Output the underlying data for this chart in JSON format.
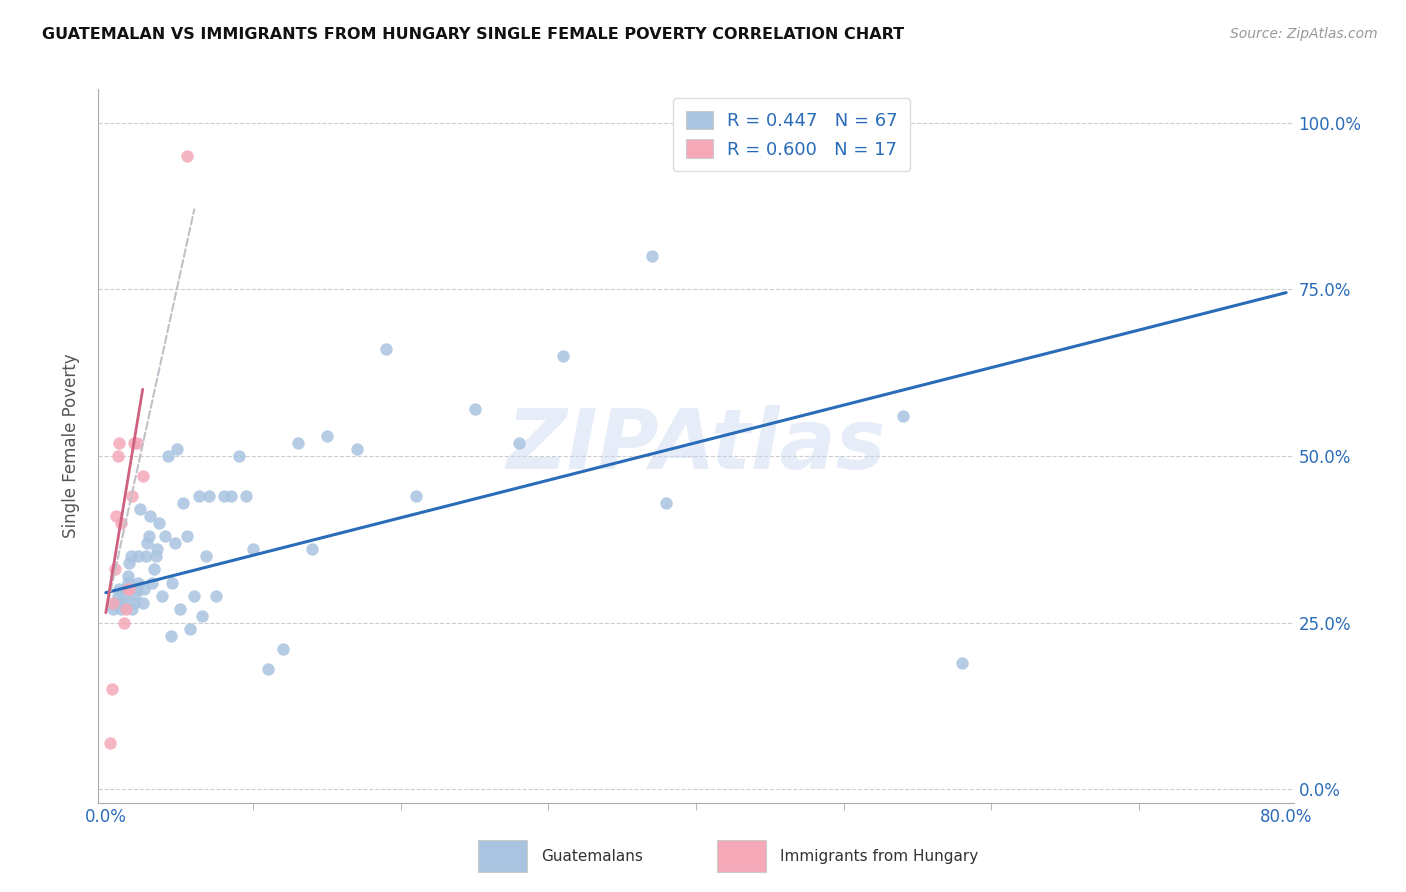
{
  "title": "GUATEMALAN VS IMMIGRANTS FROM HUNGARY SINGLE FEMALE POVERTY CORRELATION CHART",
  "source": "Source: ZipAtlas.com",
  "ylabel_label": "Single Female Poverty",
  "legend_labels": [
    "Guatemalans",
    "Immigrants from Hungary"
  ],
  "R_blue": 0.447,
  "N_blue": 67,
  "R_pink": 0.6,
  "N_pink": 17,
  "blue_color": "#a8c4e0",
  "pink_color": "#f4a8b8",
  "blue_line_color": "#2b6cb8",
  "pink_line_color": "#c0c0c8",
  "watermark": "ZIPAtlas",
  "xlim": [
    0.0,
    0.8
  ],
  "ylim": [
    0.0,
    1.0
  ],
  "yticks": [
    0.0,
    0.25,
    0.5,
    0.75,
    1.0
  ],
  "ytick_labels": [
    "0.0%",
    "25.0%",
    "50.0%",
    "75.0%",
    "100.0%"
  ],
  "xtick_left_label": "0.0%",
  "xtick_right_label": "80.0%",
  "blue_scatter_x": [
    0.005,
    0.007,
    0.008,
    0.009,
    0.01,
    0.012,
    0.013,
    0.014,
    0.015,
    0.015,
    0.016,
    0.017,
    0.018,
    0.019,
    0.02,
    0.021,
    0.022,
    0.022,
    0.023,
    0.025,
    0.026,
    0.027,
    0.028,
    0.029,
    0.03,
    0.031,
    0.033,
    0.034,
    0.035,
    0.036,
    0.038,
    0.04,
    0.042,
    0.044,
    0.045,
    0.047,
    0.048,
    0.05,
    0.052,
    0.055,
    0.057,
    0.06,
    0.063,
    0.065,
    0.068,
    0.07,
    0.075,
    0.08,
    0.085,
    0.09,
    0.095,
    0.1,
    0.11,
    0.12,
    0.13,
    0.14,
    0.15,
    0.17,
    0.19,
    0.21,
    0.25,
    0.28,
    0.31,
    0.37,
    0.38,
    0.54,
    0.58
  ],
  "blue_scatter_y": [
    0.27,
    0.28,
    0.29,
    0.3,
    0.27,
    0.28,
    0.29,
    0.3,
    0.31,
    0.32,
    0.34,
    0.35,
    0.27,
    0.28,
    0.29,
    0.3,
    0.31,
    0.35,
    0.42,
    0.28,
    0.3,
    0.35,
    0.37,
    0.38,
    0.41,
    0.31,
    0.33,
    0.35,
    0.36,
    0.4,
    0.29,
    0.38,
    0.5,
    0.23,
    0.31,
    0.37,
    0.51,
    0.27,
    0.43,
    0.38,
    0.24,
    0.29,
    0.44,
    0.26,
    0.35,
    0.44,
    0.29,
    0.44,
    0.44,
    0.5,
    0.44,
    0.36,
    0.18,
    0.21,
    0.52,
    0.36,
    0.53,
    0.51,
    0.66,
    0.44,
    0.57,
    0.52,
    0.65,
    0.8,
    0.43,
    0.56,
    0.19
  ],
  "pink_scatter_x": [
    0.003,
    0.004,
    0.005,
    0.006,
    0.007,
    0.008,
    0.009,
    0.01,
    0.012,
    0.014,
    0.015,
    0.016,
    0.018,
    0.019,
    0.021,
    0.025,
    0.055
  ],
  "pink_scatter_y": [
    0.07,
    0.15,
    0.28,
    0.33,
    0.41,
    0.5,
    0.52,
    0.4,
    0.25,
    0.27,
    0.3,
    0.3,
    0.44,
    0.52,
    0.52,
    0.47,
    0.95
  ],
  "blue_line_x": [
    0.0,
    0.8
  ],
  "blue_line_y": [
    0.295,
    0.745
  ],
  "pink_line_x": [
    0.0,
    0.06
  ],
  "pink_line_y": [
    0.265,
    0.87
  ]
}
